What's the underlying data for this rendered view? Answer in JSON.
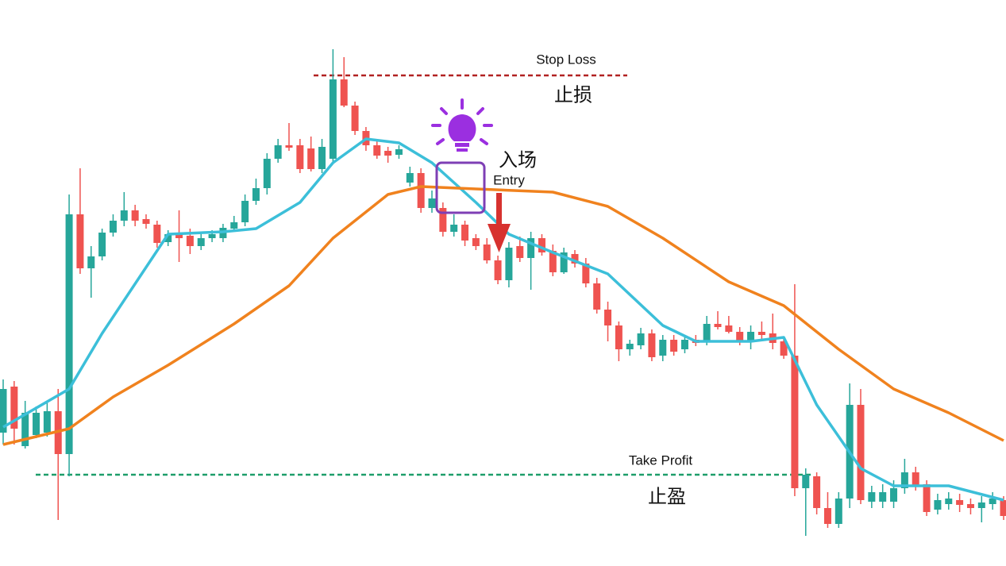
{
  "chart_data": {
    "type": "candlestick",
    "ylim": [
      0,
      713
    ],
    "up_color": "#26a69a",
    "down_color": "#ef5350",
    "open": [
      168,
      226,
      151,
      165,
      168,
      195,
      141,
      443,
      375,
      390,
      420,
      435,
      448,
      437,
      430,
      408,
      420,
      416,
      403,
      413,
      413,
      425,
      433,
      460,
      476,
      513,
      530,
      530,
      526,
      500,
      513,
      613,
      580,
      548,
      530,
      523,
      518,
      483,
      495,
      451,
      451,
      421,
      430,
      413,
      405,
      385,
      360,
      403,
      388,
      413,
      397,
      370,
      393,
      381,
      356,
      323,
      303,
      273,
      278,
      293,
      265,
      285,
      273,
      285,
      283,
      305,
      303,
      295,
      283,
      295,
      293,
      283,
      265,
      98,
      113,
      73,
      53,
      85,
      203,
      81,
      81,
      81,
      98,
      118,
      103,
      71,
      78,
      83,
      78,
      73,
      78,
      83
    ],
    "high": [
      235,
      233,
      208,
      201,
      208,
      223,
      468,
      501,
      403,
      425,
      443,
      471,
      455,
      443,
      435,
      423,
      448,
      425,
      420,
      423,
      431,
      441,
      468,
      488,
      520,
      538,
      558,
      538,
      541,
      538,
      651,
      641,
      585,
      553,
      538,
      528,
      530,
      503,
      501,
      473,
      458,
      443,
      435,
      418,
      413,
      391,
      408,
      415,
      421,
      418,
      405,
      401,
      398,
      388,
      363,
      333,
      308,
      285,
      300,
      298,
      291,
      291,
      288,
      291,
      315,
      321,
      315,
      301,
      303,
      308,
      318,
      288,
      355,
      123,
      118,
      93,
      93,
      230,
      223,
      101,
      103,
      108,
      135,
      125,
      108,
      91,
      93,
      91,
      85,
      88,
      93,
      88
    ],
    "low": [
      153,
      153,
      148,
      161,
      163,
      58,
      113,
      368,
      338,
      385,
      415,
      428,
      428,
      425,
      401,
      403,
      383,
      393,
      398,
      408,
      408,
      421,
      428,
      455,
      468,
      508,
      523,
      495,
      497,
      495,
      508,
      578,
      543,
      523,
      513,
      508,
      513,
      478,
      445,
      445,
      415,
      415,
      403,
      398,
      381,
      355,
      351,
      383,
      348,
      391,
      365,
      368,
      376,
      351,
      318,
      283,
      258,
      265,
      273,
      258,
      258,
      265,
      268,
      277,
      278,
      298,
      293,
      278,
      273,
      285,
      273,
      261,
      88,
      38,
      65,
      48,
      48,
      73,
      78,
      73,
      73,
      73,
      91,
      95,
      63,
      65,
      71,
      68,
      65,
      55,
      71,
      58
    ],
    "close": [
      223,
      173,
      193,
      193,
      195,
      141,
      443,
      375,
      390,
      420,
      435,
      448,
      435,
      431,
      407,
      418,
      413,
      403,
      413,
      418,
      426,
      433,
      460,
      476,
      513,
      530,
      527,
      500,
      500,
      528,
      613,
      580,
      548,
      530,
      517,
      517,
      525,
      495,
      451,
      463,
      421,
      430,
      410,
      403,
      385,
      360,
      401,
      388,
      413,
      395,
      370,
      395,
      381,
      356,
      323,
      303,
      273,
      280,
      293,
      263,
      285,
      270,
      285,
      281,
      305,
      301,
      295,
      283,
      295,
      291,
      281,
      265,
      98,
      115,
      73,
      53,
      85,
      203,
      83,
      93,
      93,
      98,
      118,
      101,
      68,
      83,
      85,
      77,
      73,
      80,
      85,
      63
    ],
    "lines": [
      {
        "color": "#3cbfd9",
        "x": [
          0,
          6,
          9,
          15,
          20,
          23,
          27,
          30,
          33,
          36,
          39,
          43,
          46,
          50,
          55,
          60,
          63,
          68,
          71,
          74,
          78,
          81,
          86,
          91
        ],
        "values": [
          175,
          223,
          293,
          418,
          421,
          425,
          458,
          508,
          538,
          533,
          508,
          458,
          418,
          395,
          368,
          303,
          283,
          283,
          288,
          203,
          123,
          101,
          101,
          83
        ]
      },
      {
        "color": "#f0821e",
        "x": [
          0,
          6,
          10,
          15,
          21,
          26,
          30,
          35,
          38,
          43,
          50,
          55,
          60,
          66,
          71,
          76,
          81,
          86,
          91
        ],
        "values": [
          153,
          173,
          213,
          253,
          305,
          353,
          413,
          468,
          478,
          475,
          471,
          453,
          413,
          358,
          328,
          273,
          223,
          193,
          158
        ]
      }
    ],
    "stop_loss": {
      "label": "Stop Loss",
      "label_cn": "止损",
      "value": 618,
      "color": "#b22222"
    },
    "take_profit": {
      "label": "Take Profit",
      "label_cn": "止盈",
      "value": 115,
      "color": "#1e9e6a"
    },
    "entry": {
      "label": "Entry",
      "label_cn": "入场"
    }
  }
}
